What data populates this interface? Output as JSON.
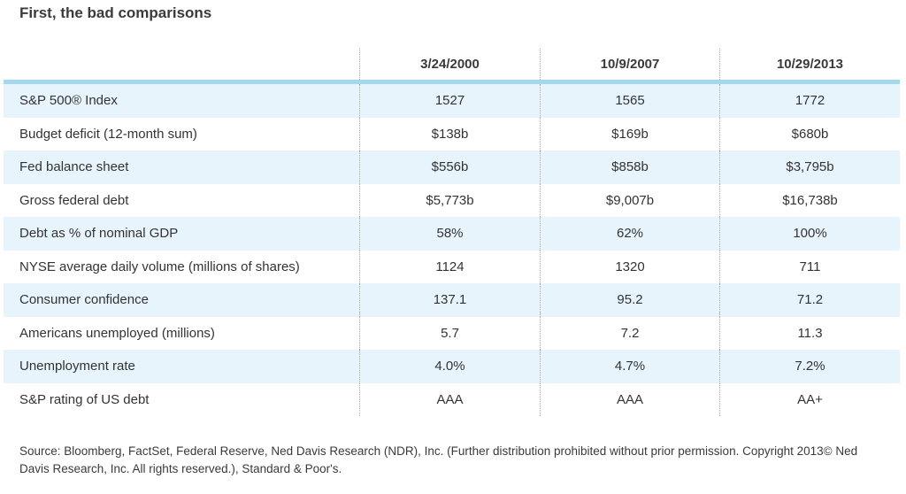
{
  "chart_data": {
    "type": "table",
    "title": "First, the bad comparisons",
    "categories": [
      "3/24/2000",
      "10/9/2007",
      "10/29/2013"
    ],
    "rows": [
      {
        "label": "S&P 500® Index",
        "values": [
          "1527",
          "1565",
          "1772"
        ]
      },
      {
        "label": "Budget deficit (12-month sum)",
        "values": [
          "$138b",
          "$169b",
          "$680b"
        ]
      },
      {
        "label": "Fed balance sheet",
        "values": [
          "$556b",
          "$858b",
          "$3,795b"
        ]
      },
      {
        "label": "Gross federal debt",
        "values": [
          "$5,773b",
          "$9,007b",
          "$16,738b"
        ]
      },
      {
        "label": "Debt as % of nominal GDP",
        "values": [
          "58%",
          "62%",
          "100%"
        ]
      },
      {
        "label": "NYSE average daily volume (millions of shares)",
        "values": [
          "1124",
          "1320",
          "711"
        ]
      },
      {
        "label": "Consumer confidence",
        "values": [
          "137.1",
          "95.2",
          "71.2"
        ]
      },
      {
        "label": "Americans unemployed (millions)",
        "values": [
          "5.7",
          "7.2",
          "11.3"
        ]
      },
      {
        "label": "Unemployment rate",
        "values": [
          "4.0%",
          "4.7%",
          "7.2%"
        ]
      },
      {
        "label": "S&P rating of US debt",
        "values": [
          "AAA",
          "AAA",
          "AA+"
        ]
      }
    ],
    "layout": {
      "alternating_row_highlight": "even rows highlighted starting with first data row",
      "column_separators": "dotted vertical lines",
      "header_rule": "thick light-blue horizontal line below column headers"
    }
  },
  "footer": {
    "source": "Source: Bloomberg, FactSet, Federal Reserve, Ned Davis Research (NDR), Inc. (Further distribution prohibited without prior permission. Copyright 2013© Ned Davis Research, Inc. All rights reserved.), Standard & Poor's."
  },
  "colors": {
    "accent_line": "#A4D8EE",
    "row_highlight": "#E8F4FB",
    "text": "#3A3A3A"
  }
}
